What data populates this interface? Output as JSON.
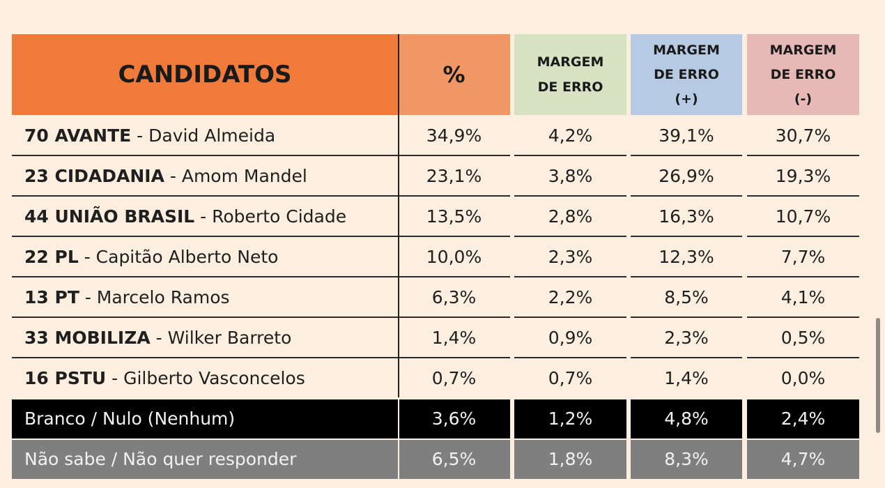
{
  "headers": {
    "candidatos": "CANDIDATOS",
    "pct": "%",
    "margem_l1": "MARGEM",
    "margem_l2": "DE ERRO",
    "plus_l1": "MARGEM",
    "plus_l2": "DE ERRO",
    "plus_l3": "(+)",
    "minus_l1": "MARGEM",
    "minus_l2": "DE ERRO",
    "minus_l3": "(-)"
  },
  "candidates": [
    {
      "party": "70 AVANTE",
      "name": " - David Almeida",
      "pct": "34,9%",
      "margem": "4,2%",
      "plus": "39,1%",
      "minus": "30,7%"
    },
    {
      "party": "23 CIDADANIA",
      "name": " - Amom Mandel",
      "pct": "23,1%",
      "margem": "3,8%",
      "plus": "26,9%",
      "minus": "19,3%"
    },
    {
      "party": "44 UNIÃO BRASIL",
      "name": " - Roberto Cidade",
      "pct": "13,5%",
      "margem": "2,8%",
      "plus": "16,3%",
      "minus": "10,7%"
    },
    {
      "party": "22 PL",
      "name": " - Capitão Alberto Neto",
      "pct": "10,0%",
      "margem": "2,3%",
      "plus": "12,3%",
      "minus": "7,7%"
    },
    {
      "party": "13 PT",
      "name": " - Marcelo Ramos",
      "pct": "6,3%",
      "margem": "2,2%",
      "plus": "8,5%",
      "minus": "4,1%"
    },
    {
      "party": "33 MOBILIZA",
      "name": " - Wilker Barreto",
      "pct": "1,4%",
      "margem": "0,9%",
      "plus": "2,3%",
      "minus": "0,5%"
    },
    {
      "party": "16 PSTU",
      "name": " - Gilberto Vasconcelos",
      "pct": "0,7%",
      "margem": "0,7%",
      "plus": "1,4%",
      "minus": "0,0%"
    }
  ],
  "others": [
    {
      "label": "Branco / Nulo (Nenhum)",
      "pct": "3,6%",
      "margem": "1,2%",
      "plus": "4,8%",
      "minus": "2,4%"
    },
    {
      "label": "Não sabe / Não quer responder",
      "pct": "6,5%",
      "margem": "1,8%",
      "plus": "8,3%",
      "minus": "4,7%"
    }
  ]
}
